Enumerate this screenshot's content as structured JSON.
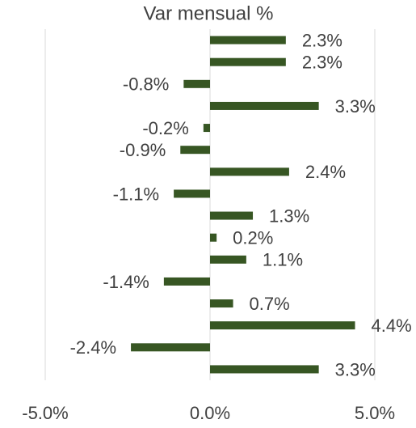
{
  "chart_data": {
    "type": "hbar",
    "title": "Var mensual %",
    "categories": [
      null,
      null,
      null,
      null,
      null,
      null,
      null,
      null,
      null,
      null,
      null,
      null,
      null,
      null,
      null,
      null
    ],
    "values": [
      2.3,
      2.3,
      -0.8,
      3.3,
      -0.2,
      -0.9,
      2.4,
      -1.1,
      1.3,
      0.2,
      1.1,
      -1.4,
      0.7,
      4.4,
      -2.4,
      3.3
    ],
    "value_labels": [
      "2.3%",
      "2.3%",
      "-0.8%",
      "3.3%",
      "-0.2%",
      "-0.9%",
      "2.4%",
      "-1.1%",
      "1.3%",
      "0.2%",
      "1.1%",
      "-1.4%",
      "0.7%",
      "4.4%",
      "-2.4%",
      "3.3%"
    ],
    "color": "#375623",
    "xlim": [
      -5,
      5
    ],
    "xticks": [
      {
        "value": -5,
        "label": "-5.0%"
      },
      {
        "value": 0,
        "label": "0.0%"
      },
      {
        "value": 5,
        "label": "5.0%"
      }
    ],
    "grid": true
  }
}
